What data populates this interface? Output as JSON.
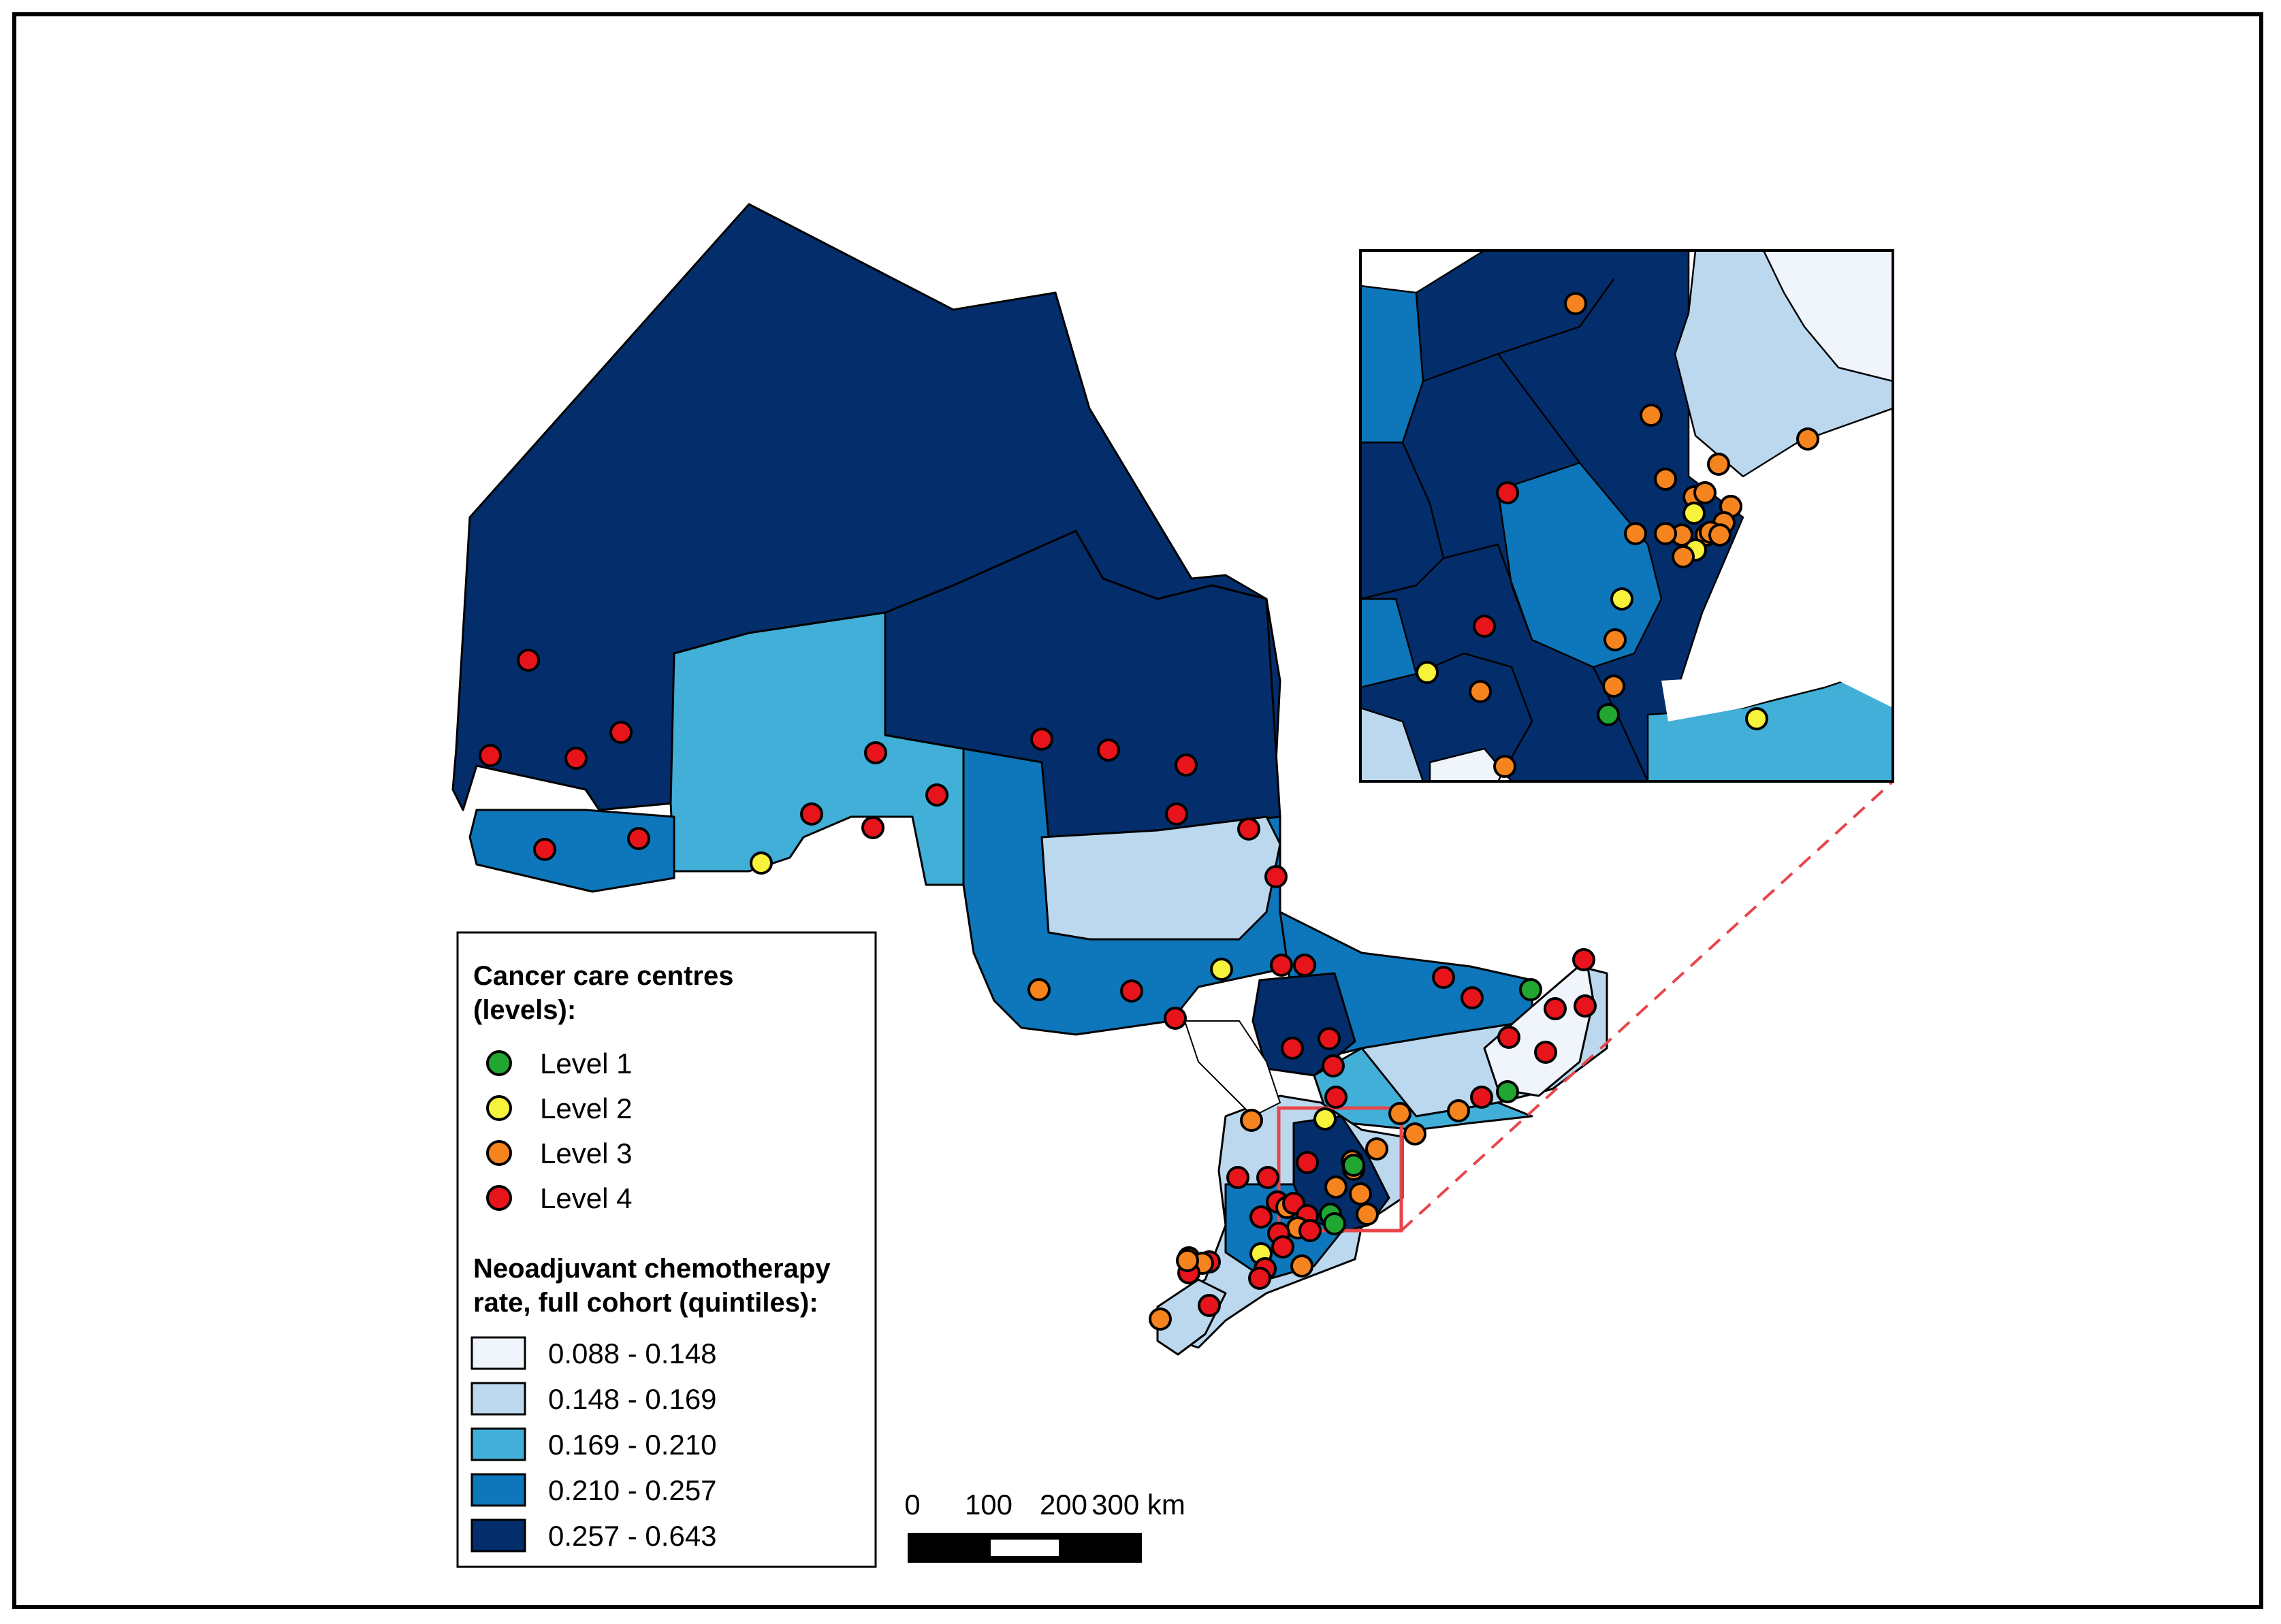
{
  "legend": {
    "centres_title_line1": "Cancer care centres",
    "centres_title_line2": "(levels):",
    "levels": [
      {
        "label": "Level 1",
        "color": "#22a632"
      },
      {
        "label": "Level 2",
        "color": "#f7f23a"
      },
      {
        "label": "Level 3",
        "color": "#f5841f"
      },
      {
        "label": "Level 4",
        "color": "#e8141b"
      }
    ],
    "rate_title_line1": "Neoadjuvant chemotherapy",
    "rate_title_line2": "rate, full cohort (quintiles):",
    "quintiles": [
      {
        "label": "0.088 - 0.148",
        "color": "#eff5fb"
      },
      {
        "label": "0.148 - 0.169",
        "color": "#bcd8ee"
      },
      {
        "label": "0.169 - 0.210",
        "color": "#41afd8"
      },
      {
        "label": "0.210 - 0.257",
        "color": "#0e76ba"
      },
      {
        "label": "0.257 - 0.643",
        "color": "#042d6b"
      }
    ]
  },
  "scale_bar": {
    "ticks": [
      "0",
      "100",
      "200",
      "300 km"
    ]
  },
  "colors": {
    "inset_frame": "#e8464b",
    "border": "#000000"
  }
}
